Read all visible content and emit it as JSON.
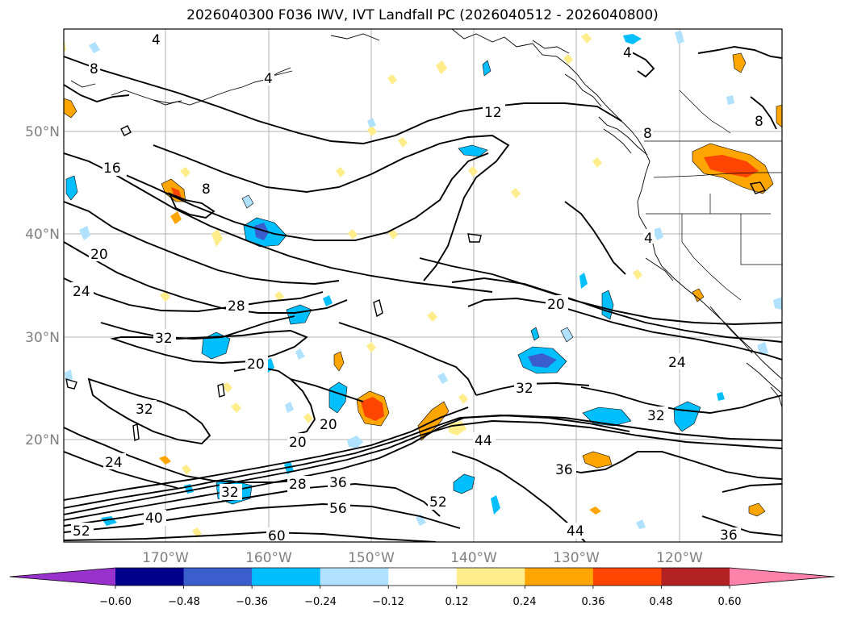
{
  "title": "2026040300 F036 IWV, IVT Landfall PC (2026040512 - 2026040800)",
  "map": {
    "lat_labels": [
      "50°N",
      "40°N",
      "30°N",
      "20°N"
    ],
    "lon_labels": [
      "170°W",
      "160°W",
      "150°W",
      "140°W",
      "130°W",
      "120°W"
    ],
    "iwv_contour_labels": [
      "4",
      "4",
      "4",
      "4",
      "8",
      "8",
      "8",
      "8",
      "12",
      "16",
      "20",
      "20",
      "20",
      "20",
      "20",
      "24",
      "24",
      "24",
      "28",
      "28",
      "32",
      "32",
      "32",
      "32",
      "32",
      "36",
      "36",
      "36",
      "40",
      "44",
      "44",
      "52",
      "52",
      "56",
      "60"
    ]
  },
  "colorbar": {
    "ticks": [
      "−0.60",
      "−0.48",
      "−0.36",
      "−0.24",
      "−0.12",
      "0.12",
      "0.24",
      "0.36",
      "0.48",
      "0.60"
    ],
    "colors": [
      "#9932cc",
      "#00008b",
      "#3a5fcd",
      "#00bfff",
      "#b0e2ff",
      "#ffffff",
      "#ffec8b",
      "#ffa500",
      "#ff4500",
      "#b22222",
      "#ff82ab"
    ]
  }
}
